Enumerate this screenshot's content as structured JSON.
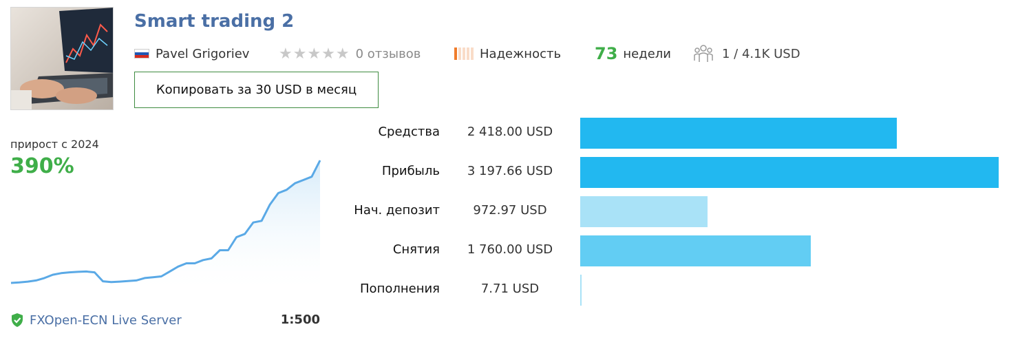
{
  "title": "Smart trading 2",
  "author": "Pavel Grigoriev",
  "reviews": "0 отзывов",
  "reliability": {
    "label": "Надежность",
    "level": 1,
    "max": 5
  },
  "weeks": {
    "value": "73",
    "label": "недели"
  },
  "subscribers": "1 / 4.1K USD",
  "copy_button": "Копировать за 30 USD в месяц",
  "growth": {
    "label": "прирост с 2024",
    "value": "390%"
  },
  "server": "FXOpen-ECN Live Server",
  "leverage": "1:500",
  "colors": {
    "accent_blue": "#4a6fa5",
    "positive_green": "#3fae49",
    "bar_dark": "#22b8f0",
    "bar_light": "#a9e2f7",
    "bar_mid": "#62cdf3"
  },
  "stats": [
    {
      "label": "Средства",
      "value": "2 418.00 USD",
      "amount": 2418.0,
      "color": "#22b8f0"
    },
    {
      "label": "Прибыль",
      "value": "3 197.66 USD",
      "amount": 3197.66,
      "color": "#22b8f0"
    },
    {
      "label": "Нач. депозит",
      "value": "972.97 USD",
      "amount": 972.97,
      "color": "#a9e2f7"
    },
    {
      "label": "Снятия",
      "value": "1 760.00 USD",
      "amount": 1760.0,
      "color": "#62cdf3"
    },
    {
      "label": "Пополнения",
      "value": "7.71 USD",
      "amount": 7.71,
      "color": "#a9e2f7"
    }
  ],
  "chart_data": {
    "type": "area",
    "values": [
      0,
      0.3,
      0.8,
      1.5,
      3,
      5,
      6,
      6.5,
      6.8,
      7,
      6.5,
      1,
      0.5,
      0.8,
      1.2,
      1.5,
      3,
      3.5,
      4,
      7,
      10,
      12,
      12,
      14,
      15,
      20,
      20,
      28,
      30,
      37,
      38,
      48,
      55,
      57,
      61,
      63,
      65,
      75
    ]
  }
}
